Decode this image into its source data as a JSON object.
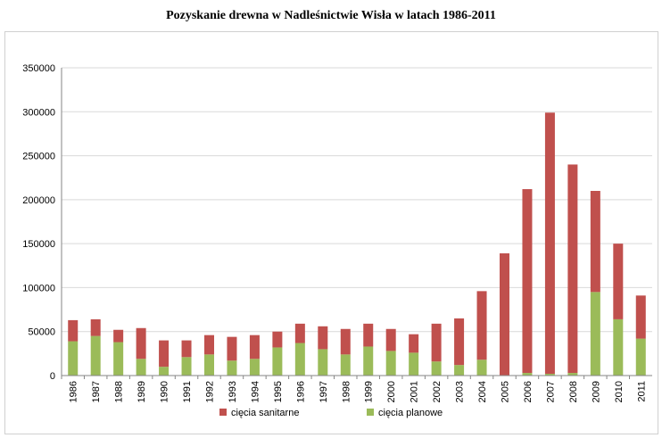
{
  "chart_title": "Pozyskanie drewna w Nadleśnictwie Wisła w latach 1986-2011",
  "colors": {
    "sanitarne": "#c0504d",
    "planowe": "#9bbb59",
    "grid": "#d9d9d9",
    "axis": "#868686"
  },
  "chart_data": {
    "type": "bar",
    "stacked": true,
    "title": "Pozyskanie drewna w Nadleśnictwie Wisła w latach 1986-2011",
    "xlabel": "",
    "ylabel": "",
    "ylim": [
      0,
      350000
    ],
    "yticks": [
      0,
      50000,
      100000,
      150000,
      200000,
      250000,
      300000,
      350000
    ],
    "grid": true,
    "legend_position": "bottom",
    "categories": [
      "1986",
      "1987",
      "1988",
      "1989",
      "1990",
      "1991",
      "1992",
      "1993",
      "1994",
      "1995",
      "1996",
      "1997",
      "1998",
      "1999",
      "2000",
      "2001",
      "2002",
      "2003",
      "2004",
      "2005",
      "2006",
      "2007",
      "2008",
      "2009",
      "2010",
      "2011"
    ],
    "series": [
      {
        "name": "cięcia planowe",
        "values": [
          39000,
          45000,
          38000,
          19000,
          10000,
          21000,
          24000,
          17000,
          19000,
          32000,
          37000,
          30000,
          24000,
          33000,
          28000,
          26000,
          16000,
          12000,
          18000,
          0,
          3000,
          2000,
          3000,
          95000,
          64000,
          42000
        ]
      },
      {
        "name": "cięcia sanitarne",
        "values": [
          24000,
          19000,
          14000,
          35000,
          30000,
          19000,
          22000,
          27000,
          27000,
          18000,
          22000,
          26000,
          29000,
          26000,
          25000,
          21000,
          43000,
          53000,
          78000,
          139000,
          209000,
          297000,
          237000,
          115000,
          86000,
          49000
        ]
      }
    ]
  }
}
